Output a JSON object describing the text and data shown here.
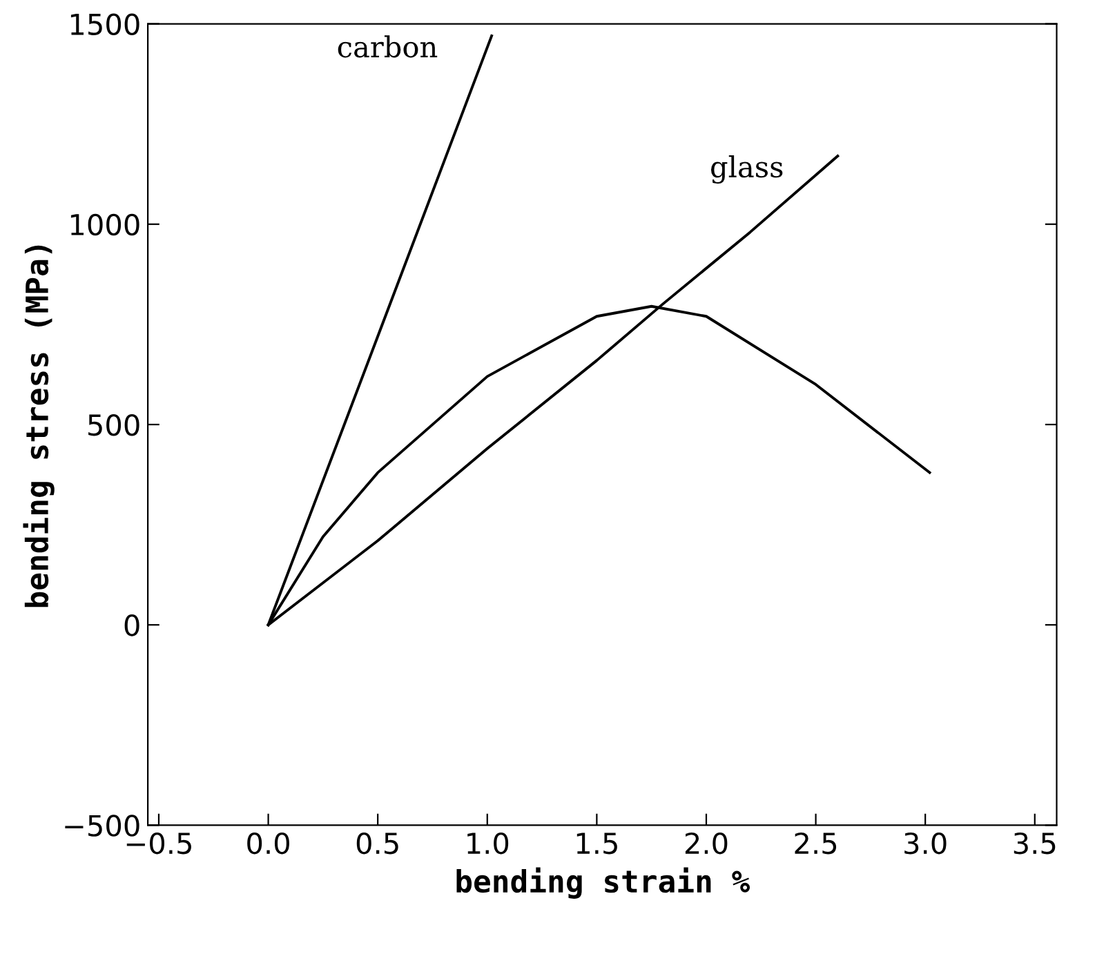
{
  "chart_data": {
    "type": "line",
    "xlabel": "bending strain %",
    "ylabel": "bending stress (MPa)",
    "xlim": [
      -0.55,
      3.6
    ],
    "ylim": [
      -500,
      1500
    ],
    "xticks": [
      {
        "value": -0.5,
        "label": "−0.5"
      },
      {
        "value": 0.0,
        "label": "0.0"
      },
      {
        "value": 0.5,
        "label": "0.5"
      },
      {
        "value": 1.0,
        "label": "1.0"
      },
      {
        "value": 1.5,
        "label": "1.5"
      },
      {
        "value": 2.0,
        "label": "2.0"
      },
      {
        "value": 2.5,
        "label": "2.5"
      },
      {
        "value": 3.0,
        "label": "3.0"
      },
      {
        "value": 3.5,
        "label": "3.5"
      }
    ],
    "yticks": [
      {
        "value": -500,
        "label": "−500"
      },
      0,
      500,
      1000,
      1500
    ],
    "grid": false,
    "legend": false,
    "marker": "none",
    "line_style": "solid",
    "series": [
      {
        "name": "carbon",
        "color": "#000000",
        "x": [
          0,
          0.5,
          1.02
        ],
        "values": [
          0,
          720,
          1470
        ]
      },
      {
        "name": "glass",
        "color": "#000000",
        "x": [
          0,
          0.5,
          1.0,
          1.5,
          1.8,
          2.2,
          2.6
        ],
        "values": [
          0,
          210,
          440,
          660,
          800,
          980,
          1170
        ]
      },
      {
        "color": "#000000",
        "x": [
          0,
          0.25,
          0.5,
          1.0,
          1.5,
          1.75,
          2.0,
          2.5,
          3.02
        ],
        "values": [
          0,
          220,
          380,
          620,
          770,
          795,
          770,
          600,
          380
        ]
      }
    ]
  }
}
